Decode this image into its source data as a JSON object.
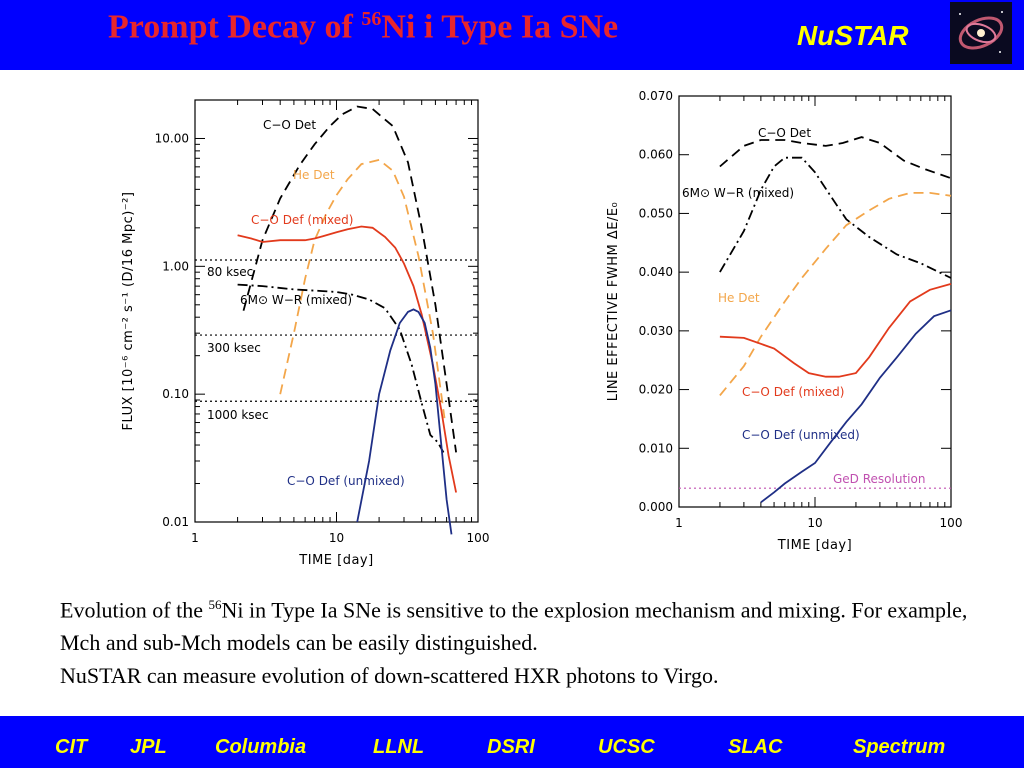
{
  "header": {
    "title_pre": "Prompt Decay of ",
    "title_sup": "56",
    "title_post": "Ni i Type Ia SNe",
    "brand": "NuSTAR",
    "logo_icon": "galaxy-image"
  },
  "colors": {
    "header_bg": "#0000ff",
    "title": "#e8262b",
    "brand": "#ffff00",
    "red": "#e23a1c",
    "orange": "#f3a64a",
    "navy": "#1f2f86",
    "magenta": "#c050b0"
  },
  "chart_data": [
    {
      "type": "line",
      "xscale": "log",
      "yscale": "log",
      "xlim": [
        1,
        100
      ],
      "ylim": [
        0.01,
        20
      ],
      "xlabel": "TIME [day]",
      "ylabel": "FLUX [10⁻⁶ cm⁻² s⁻¹ (D/16 Mpc)⁻²]",
      "xticks": [
        "1",
        "10",
        "100"
      ],
      "yticks": [
        "0.01",
        "0.10",
        "1.00",
        "10.00"
      ],
      "series": [
        {
          "name": "C−O Det",
          "style": "dashed",
          "color": "#000000",
          "x": [
            2.2,
            3,
            4,
            5.5,
            7,
            9,
            11,
            14,
            18,
            25,
            32,
            40,
            50,
            60,
            70
          ],
          "y": [
            0.45,
            1.6,
            3.4,
            6.2,
            9.0,
            12.5,
            15.5,
            17.8,
            17.0,
            12.5,
            6.5,
            2.0,
            0.5,
            0.12,
            0.035
          ]
        },
        {
          "name": "He Det",
          "style": "dashed",
          "color": "#f3a64a",
          "x": [
            4,
            5,
            6,
            7,
            8.5,
            10,
            12,
            15,
            20,
            25,
            30,
            38,
            48,
            58
          ],
          "y": [
            0.1,
            0.3,
            0.8,
            1.6,
            2.6,
            3.6,
            4.8,
            6.3,
            6.8,
            5.6,
            3.5,
            1.2,
            0.3,
            0.065
          ]
        },
        {
          "name": "C−O Def (mixed)",
          "style": "solid",
          "color": "#e23a1c",
          "x": [
            2,
            2.5,
            3,
            4,
            5,
            6,
            7,
            8,
            10,
            12,
            15,
            18,
            22,
            26,
            30,
            35,
            40,
            48,
            55,
            62,
            70
          ],
          "y": [
            1.75,
            1.65,
            1.55,
            1.6,
            1.6,
            1.6,
            1.65,
            1.72,
            1.85,
            1.95,
            2.05,
            2.0,
            1.7,
            1.4,
            1.05,
            0.7,
            0.42,
            0.17,
            0.075,
            0.033,
            0.017
          ]
        },
        {
          "name": "6M⊙ W−R (mixed)",
          "style": "dashdot",
          "color": "#000000",
          "x": [
            2,
            3,
            5,
            8,
            10,
            13,
            17,
            22,
            28,
            34,
            40,
            46,
            52,
            57
          ],
          "y": [
            0.72,
            0.7,
            0.66,
            0.64,
            0.63,
            0.6,
            0.55,
            0.47,
            0.32,
            0.17,
            0.085,
            0.048,
            0.042,
            0.035
          ]
        },
        {
          "name": "C−O Def (unmixed)",
          "style": "solid",
          "color": "#1f2f86",
          "x": [
            14,
            17,
            20,
            24,
            28,
            32,
            35,
            38,
            42,
            46,
            50,
            55,
            60,
            65
          ],
          "y": [
            0.01,
            0.03,
            0.1,
            0.22,
            0.36,
            0.44,
            0.46,
            0.44,
            0.36,
            0.23,
            0.12,
            0.04,
            0.015,
            0.008
          ]
        }
      ],
      "reference_lines": [
        {
          "label": "80 ksec",
          "y": 1.12
        },
        {
          "label": "300 ksec",
          "y": 0.29
        },
        {
          "label": "1000 ksec",
          "y": 0.088
        }
      ]
    },
    {
      "type": "line",
      "xscale": "log",
      "yscale": "linear",
      "xlim": [
        1,
        100
      ],
      "ylim": [
        0,
        0.07
      ],
      "xlabel": "TIME [day]",
      "ylabel": "LINE EFFECTIVE FWHM ΔE/E₀",
      "xticks": [
        "1",
        "10",
        "100"
      ],
      "yticks": [
        "0.000",
        "0.010",
        "0.020",
        "0.030",
        "0.040",
        "0.050",
        "0.060",
        "0.070"
      ],
      "series": [
        {
          "name": "C−O Det",
          "style": "dashed",
          "color": "#000000",
          "x": [
            2,
            3,
            4,
            6,
            8,
            12,
            16,
            22,
            30,
            45,
            65,
            100
          ],
          "y": [
            0.058,
            0.0615,
            0.0625,
            0.0625,
            0.062,
            0.0615,
            0.062,
            0.063,
            0.062,
            0.059,
            0.0575,
            0.056
          ]
        },
        {
          "name": "6M⊙ W−R (mixed)",
          "style": "dashdot",
          "color": "#000000",
          "x": [
            2,
            3,
            4,
            5,
            6,
            8,
            10,
            13,
            17,
            25,
            40,
            60,
            100
          ],
          "y": [
            0.04,
            0.047,
            0.054,
            0.058,
            0.0595,
            0.0595,
            0.057,
            0.053,
            0.049,
            0.046,
            0.043,
            0.0415,
            0.039
          ]
        },
        {
          "name": "He Det",
          "style": "dashed",
          "color": "#f3a64a",
          "x": [
            2,
            3,
            4,
            6,
            8,
            12,
            17,
            25,
            35,
            50,
            70,
            100
          ],
          "y": [
            0.019,
            0.024,
            0.029,
            0.035,
            0.039,
            0.044,
            0.048,
            0.0505,
            0.0525,
            0.0535,
            0.0535,
            0.053
          ]
        },
        {
          "name": "C−O Def (mixed)",
          "style": "solid",
          "color": "#e23a1c",
          "x": [
            2,
            3,
            5,
            7,
            9,
            12,
            15,
            20,
            25,
            35,
            50,
            70,
            100
          ],
          "y": [
            0.029,
            0.0288,
            0.027,
            0.0245,
            0.0228,
            0.0222,
            0.0222,
            0.0228,
            0.0255,
            0.0305,
            0.035,
            0.037,
            0.038
          ]
        },
        {
          "name": "C−O Def (unmixed)",
          "style": "solid",
          "color": "#1f2f86",
          "x": [
            4,
            5,
            6,
            8,
            10,
            13,
            17,
            22,
            30,
            40,
            55,
            75,
            100
          ],
          "y": [
            0.0008,
            0.0025,
            0.004,
            0.006,
            0.0075,
            0.011,
            0.0145,
            0.0175,
            0.022,
            0.0255,
            0.0295,
            0.0325,
            0.0335
          ]
        }
      ],
      "reference_lines": [
        {
          "label": "GeD Resolution",
          "y": 0.0032,
          "color": "#c050b0"
        }
      ]
    }
  ],
  "caption": {
    "line1_pre": "Evolution of the ",
    "line1_sup": "56",
    "line1_post": "Ni in Type Ia SNe is sensitive to the explosion mechanism and mixing.  For example, Mch and sub-Mch models can be easily distinguished.",
    "line2": "NuSTAR can measure evolution of down-scattered HXR photons to Virgo."
  },
  "footer": {
    "items": [
      "CIT",
      "JPL",
      "Columbia",
      "LLNL",
      "DSRI",
      "UCSC",
      "SLAC",
      "Spectrum"
    ]
  }
}
